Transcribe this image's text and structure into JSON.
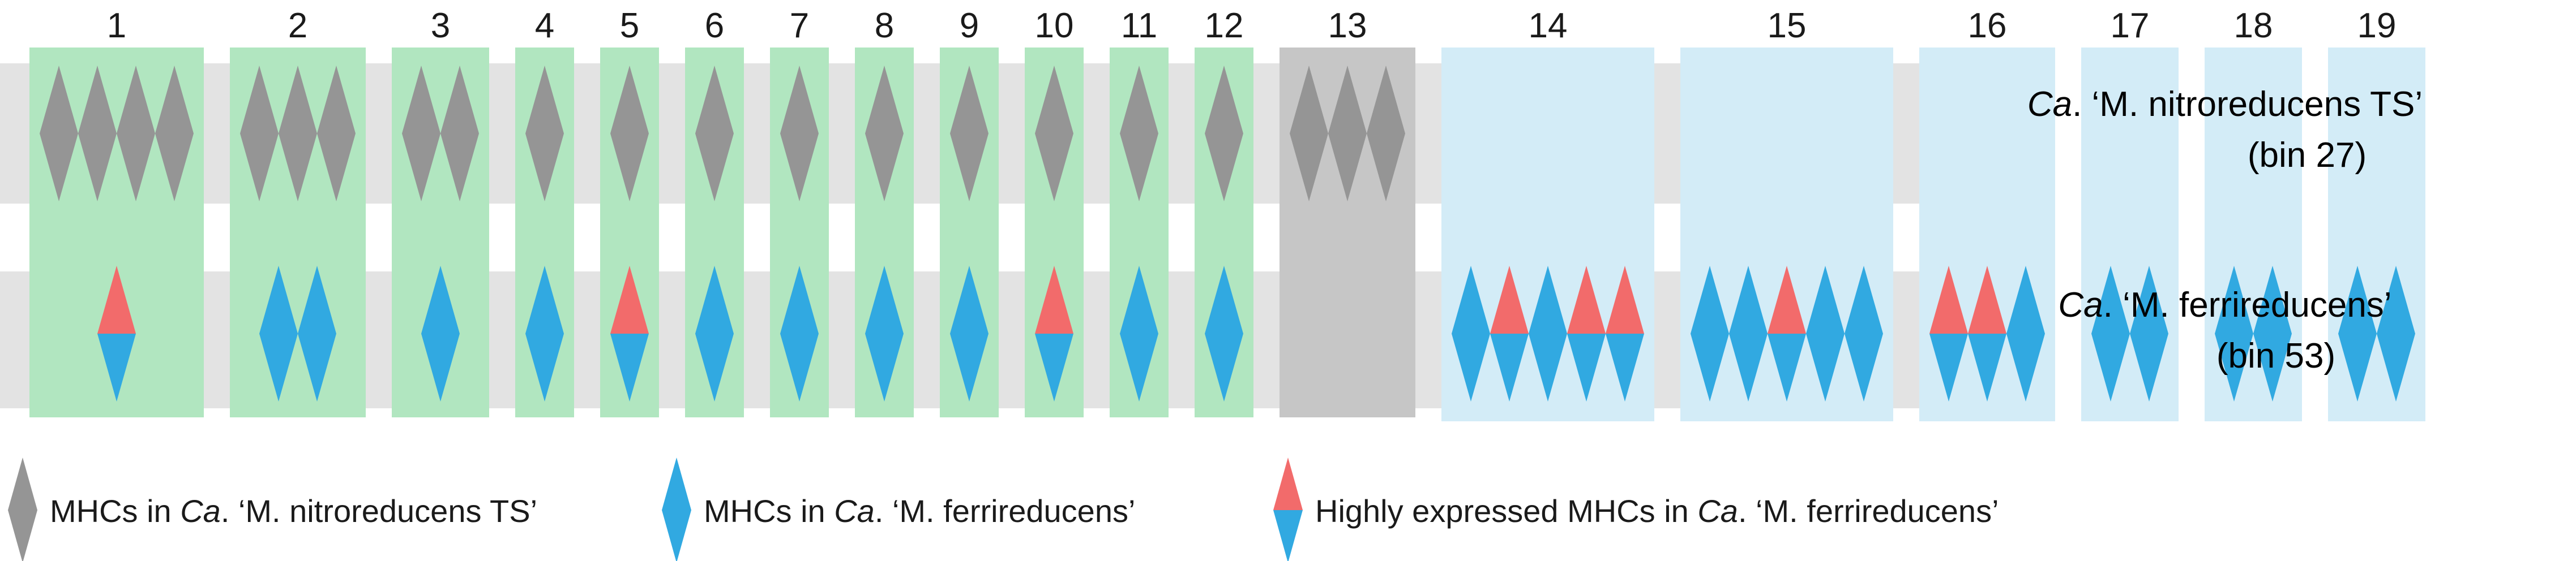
{
  "groups": [
    {
      "number": "1",
      "category": "shared",
      "nitro": [
        "gray",
        "gray",
        "gray",
        "gray"
      ],
      "ferri": [
        "high"
      ]
    },
    {
      "number": "2",
      "category": "shared",
      "nitro": [
        "gray",
        "gray",
        "gray"
      ],
      "ferri": [
        "blue",
        "blue"
      ]
    },
    {
      "number": "3",
      "category": "shared",
      "nitro": [
        "gray",
        "gray"
      ],
      "ferri": [
        "blue"
      ]
    },
    {
      "number": "4",
      "category": "shared",
      "nitro": [
        "gray"
      ],
      "ferri": [
        "blue"
      ]
    },
    {
      "number": "5",
      "category": "shared",
      "nitro": [
        "gray"
      ],
      "ferri": [
        "high"
      ]
    },
    {
      "number": "6",
      "category": "shared",
      "nitro": [
        "gray"
      ],
      "ferri": [
        "blue"
      ]
    },
    {
      "number": "7",
      "category": "shared",
      "nitro": [
        "gray"
      ],
      "ferri": [
        "blue"
      ]
    },
    {
      "number": "8",
      "category": "shared",
      "nitro": [
        "gray"
      ],
      "ferri": [
        "blue"
      ]
    },
    {
      "number": "9",
      "category": "shared",
      "nitro": [
        "gray"
      ],
      "ferri": [
        "blue"
      ]
    },
    {
      "number": "10",
      "category": "shared",
      "nitro": [
        "gray"
      ],
      "ferri": [
        "high"
      ]
    },
    {
      "number": "11",
      "category": "shared",
      "nitro": [
        "gray"
      ],
      "ferri": [
        "blue"
      ]
    },
    {
      "number": "12",
      "category": "shared",
      "nitro": [
        "gray"
      ],
      "ferri": [
        "blue"
      ]
    },
    {
      "number": "13",
      "category": "nitro_only",
      "nitro": [
        "gray",
        "gray",
        "gray"
      ],
      "ferri": []
    },
    {
      "number": "14",
      "category": "ferri_only",
      "nitro": [],
      "ferri": [
        "blue",
        "high",
        "blue",
        "high",
        "high"
      ]
    },
    {
      "number": "15",
      "category": "ferri_only",
      "nitro": [],
      "ferri": [
        "blue",
        "blue",
        "high",
        "blue",
        "blue"
      ]
    },
    {
      "number": "16",
      "category": "ferri_only",
      "nitro": [],
      "ferri": [
        "high",
        "high",
        "blue"
      ]
    },
    {
      "number": "17",
      "category": "ferri_only",
      "nitro": [],
      "ferri": [
        "blue",
        "blue"
      ]
    },
    {
      "number": "18",
      "category": "ferri_only",
      "nitro": [],
      "ferri": [
        "blue",
        "blue"
      ]
    },
    {
      "number": "19",
      "category": "ferri_only",
      "nitro": [],
      "ferri": [
        "blue",
        "blue"
      ]
    }
  ],
  "organisms": {
    "nitro": {
      "prefix": "Ca",
      "name": ". ‘M. nitroreducens TS’",
      "bin": "(bin 27)"
    },
    "ferri": {
      "prefix": "Ca",
      "name": ". ‘M. ferrireducens’",
      "bin": "(bin 53)"
    }
  },
  "legend": [
    {
      "type": "gray",
      "pre": "MHCs in ",
      "italic": "Ca",
      "post": ". ‘M. nitroreducens TS’"
    },
    {
      "type": "blue",
      "pre": "MHCs in ",
      "italic": "Ca",
      "post": ". ‘M. ferrireducens’"
    },
    {
      "type": "high",
      "pre": "Highly expressed MHCs in ",
      "italic": "Ca",
      "post": ". ‘M. ferrireducens’"
    }
  ],
  "colors": {
    "shared_box": "#b1e6c0",
    "nitro_only_box": "#c6c6c6",
    "ferri_only_box": "#d3ecf7",
    "track": "#e3e3e3",
    "gray_diamond": "#959595",
    "blue_diamond": "#31a9e1",
    "red_diamond": "#f26b6b",
    "text": "#1a1a1a"
  }
}
